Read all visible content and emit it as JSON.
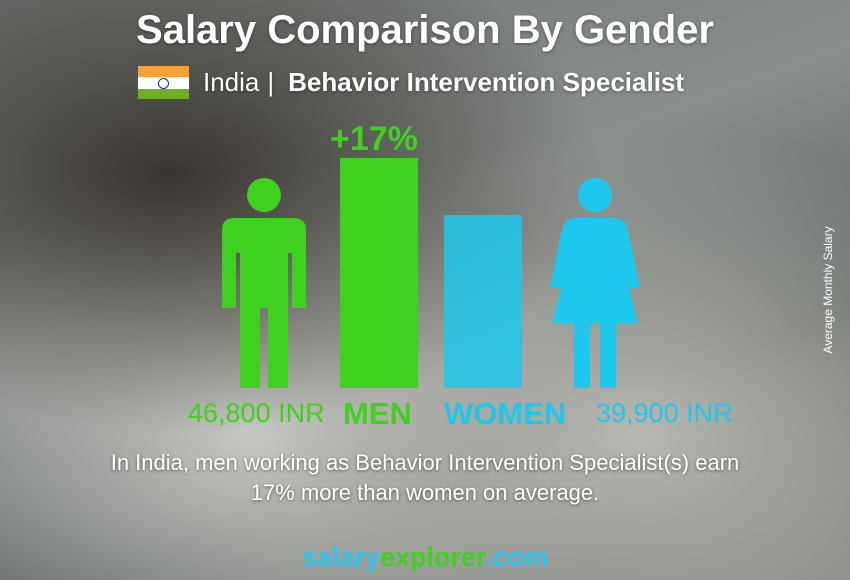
{
  "title": "Salary Comparison By Gender",
  "country": "India",
  "separator": "|",
  "job": "Behavior Intervention Specialist",
  "difference_label": "+17%",
  "description_line1": "In India, men working as Behavior Intervention Specialist(s) earn",
  "description_line2": "17% more than women on average.",
  "brand": {
    "part1": "salary",
    "part2": "explorer",
    "part3": ".com"
  },
  "icons": {
    "flag": "india-flag-icon",
    "men": "male-person-icon",
    "women": "female-person-icon"
  },
  "colors": {
    "men": "#3ed11e",
    "women": "#1ec8ec",
    "brand_blue": "#29c6f0",
    "brand_green": "#3ed11e"
  },
  "chart_data": {
    "type": "bar",
    "title": "Salary Comparison By Gender",
    "ylabel": "Average Monthly Salary",
    "categories": [
      "MEN",
      "WOMEN"
    ],
    "values": [
      46800,
      39900
    ],
    "value_labels": [
      "46,800 INR",
      "39,900 INR"
    ],
    "unit": "INR",
    "grid": false
  }
}
